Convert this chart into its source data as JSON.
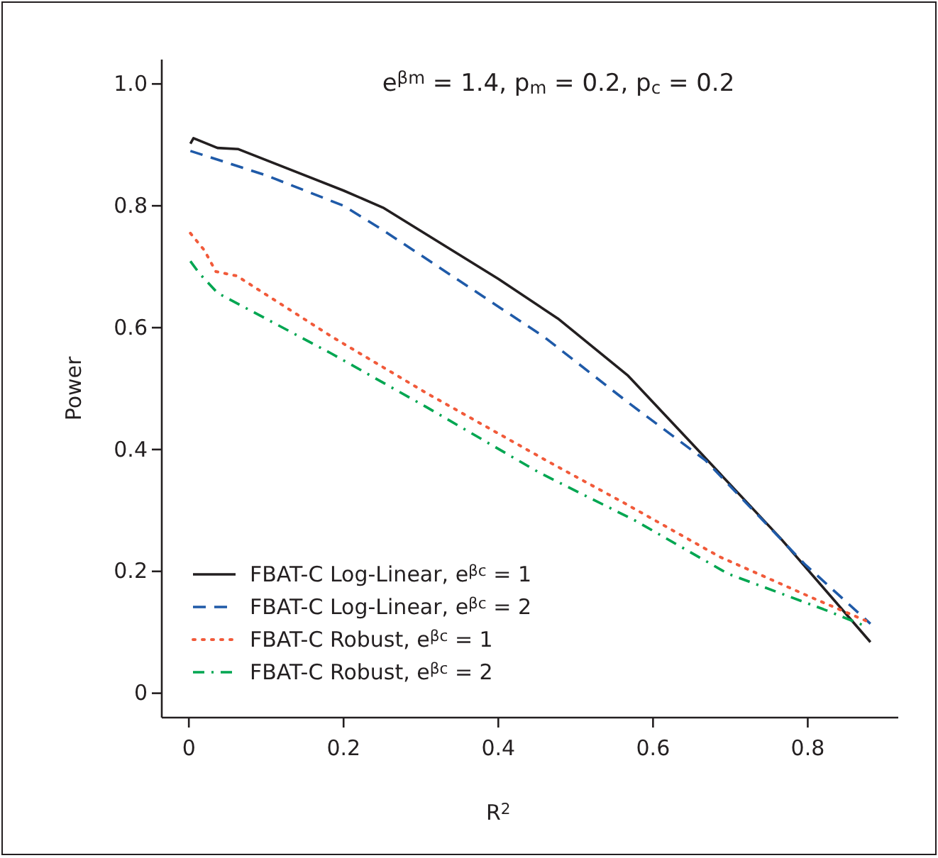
{
  "chart_data": {
    "type": "line",
    "title": "e$^{βm}$ = 1.4, p$_{m}$ = 0.2, p$_{c}$ = 0.2",
    "xlabel": "R$^{2}$",
    "ylabel": "Power",
    "xlim": [
      -0.035,
      0.917
    ],
    "ylim": [
      -0.04,
      1.04
    ],
    "xticks": [
      0,
      0.2,
      0.4,
      0.6,
      0.8
    ],
    "yticks": [
      0,
      {
        "value": 0.2,
        "label": "0.2"
      },
      {
        "value": 0.4,
        "label": "0.4"
      },
      {
        "value": 0.6,
        "label": "0.6"
      },
      {
        "value": 0.8,
        "label": "0.8"
      },
      {
        "value": 1,
        "label": "1.0"
      }
    ],
    "grid": false,
    "legend": "bottom left",
    "marker": "none",
    "series": [
      {
        "name": "FBAT-C Log-Linear, e$^{βc}$ = 1",
        "color": "#231f20",
        "line_style": "solid",
        "x": [
          0.002,
          0.006,
          0.037,
          0.064,
          0.2,
          0.251,
          0.4,
          0.477,
          0.567,
          0.65,
          0.765,
          0.881
        ],
        "values": [
          0.902,
          0.911,
          0.895,
          0.893,
          0.825,
          0.797,
          0.68,
          0.615,
          0.522,
          0.41,
          0.254,
          0.084
        ]
      },
      {
        "name": "FBAT-C Log-Linear, e$^{βc}$ = 2",
        "color": "#1f5aa8",
        "line_style": "dashed",
        "x": [
          0.002,
          0.1,
          0.2,
          0.251,
          0.459,
          0.569,
          0.668,
          0.796,
          0.881
        ],
        "values": [
          0.89,
          0.85,
          0.8,
          0.76,
          0.585,
          0.476,
          0.382,
          0.212,
          0.114
        ]
      },
      {
        "name": "FBAT-C Robust, e$^{βc}$ = 1",
        "color": "#f15a3a",
        "line_style": "dotted",
        "x": [
          0.002,
          0.02,
          0.035,
          0.062,
          0.185,
          0.308,
          0.462,
          0.563,
          0.686,
          0.807,
          0.875
        ],
        "values": [
          0.755,
          0.727,
          0.692,
          0.685,
          0.585,
          0.492,
          0.382,
          0.312,
          0.224,
          0.156,
          0.119
        ]
      },
      {
        "name": "FBAT-C Robust, e$^{βc}$ = 2",
        "color": "#00a651",
        "line_style": "dashdot",
        "x": [
          0.002,
          0.013,
          0.037,
          0.185,
          0.308,
          0.453,
          0.576,
          0.697,
          0.82,
          0.875
        ],
        "values": [
          0.709,
          0.69,
          0.657,
          0.557,
          0.469,
          0.362,
          0.284,
          0.196,
          0.138,
          0.11
        ]
      }
    ]
  }
}
